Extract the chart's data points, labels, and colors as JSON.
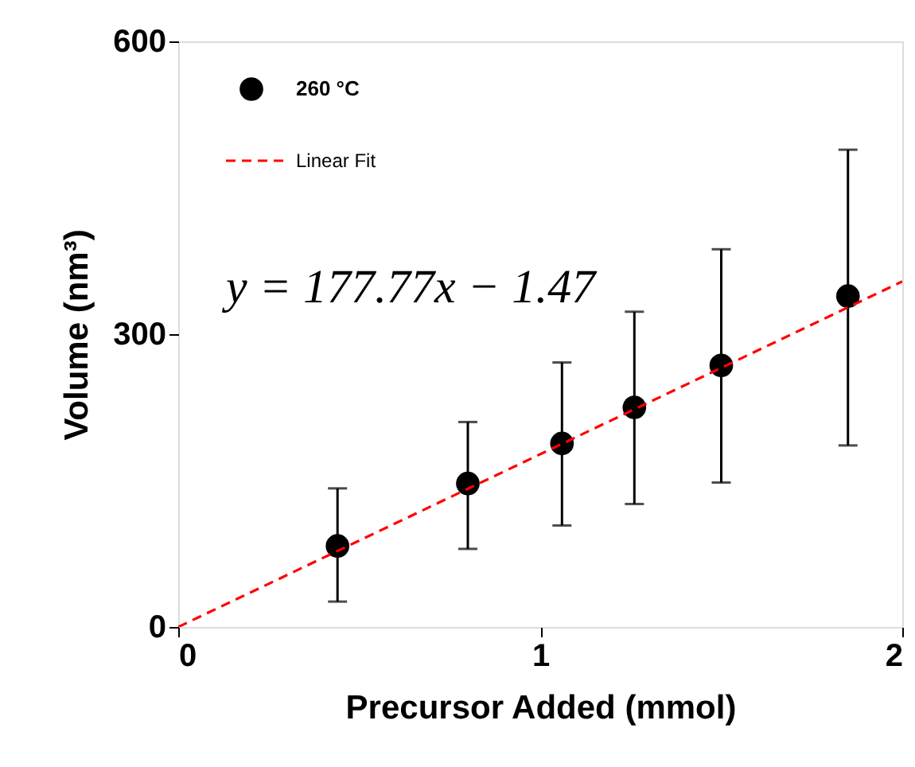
{
  "chart_data": {
    "type": "scatter",
    "xlabel": "Precursor Added (mmol)",
    "ylabel": "Volume (nm³)",
    "xlim": [
      0,
      2
    ],
    "xticks": [
      0,
      1,
      2
    ],
    "ylim": [
      0,
      600
    ],
    "yticks": [
      0,
      300,
      600
    ],
    "grid": false,
    "legend": "top left",
    "annotations": [
      "y = 177.77x − 1.47"
    ],
    "series": [
      {
        "name": "260 °C",
        "color": "#000000",
        "marker": "circle",
        "x": [
          0.44,
          0.8,
          1.06,
          1.26,
          1.5,
          1.85
        ],
        "values": [
          83,
          147,
          188,
          225,
          268,
          339
        ],
        "errors": [
          [
            26,
            142
          ],
          [
            80,
            210
          ],
          [
            104,
            271
          ],
          [
            126,
            323
          ],
          [
            148,
            387
          ],
          [
            186,
            489
          ]
        ]
      },
      {
        "name": "Linear Fit",
        "type": "line",
        "color": "#ff0000",
        "line_style": "dashed",
        "x": [
          0,
          2
        ],
        "values": [
          0,
          354
        ]
      }
    ]
  }
}
